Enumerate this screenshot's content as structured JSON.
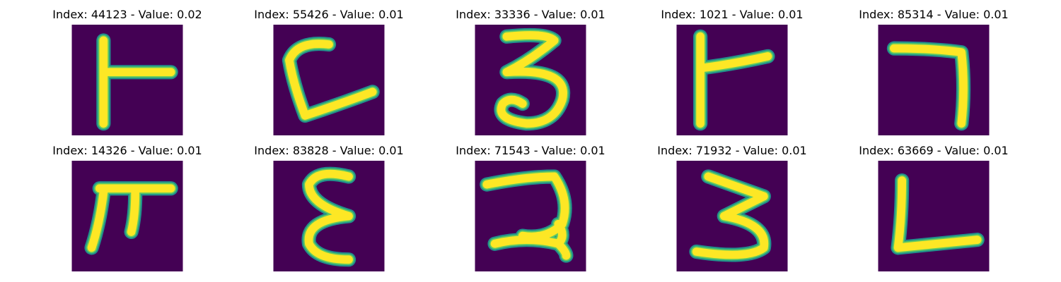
{
  "colors": {
    "background": "#440154",
    "stroke_edge": "#21918c",
    "stroke_mid": "#5ec962",
    "stroke_core": "#fde725",
    "title_text": "#000000"
  },
  "panels": [
    {
      "title": "Index: 44123 - Value: 0.02",
      "glyph": "ㅏ"
    },
    {
      "title": "Index: 55426 - Value: 0.01",
      "glyph": "ㄷ"
    },
    {
      "title": "Index: 33336 - Value: 0.01",
      "glyph": "3"
    },
    {
      "title": "Index: 1021 - Value: 0.01",
      "glyph": "ㅏ"
    },
    {
      "title": "Index: 85314 - Value: 0.01",
      "glyph": "ㄱ"
    },
    {
      "title": "Index: 14326 - Value: 0.01",
      "glyph": "ㅠ"
    },
    {
      "title": "Index: 83828 - Value: 0.01",
      "glyph": "ε"
    },
    {
      "title": "Index: 71543 - Value: 0.01",
      "glyph": "ㄹ"
    },
    {
      "title": "Index: 71932 - Value: 0.01",
      "glyph": "3"
    },
    {
      "title": "Index: 63669 - Value: 0.01",
      "glyph": "ㄴ"
    }
  ]
}
